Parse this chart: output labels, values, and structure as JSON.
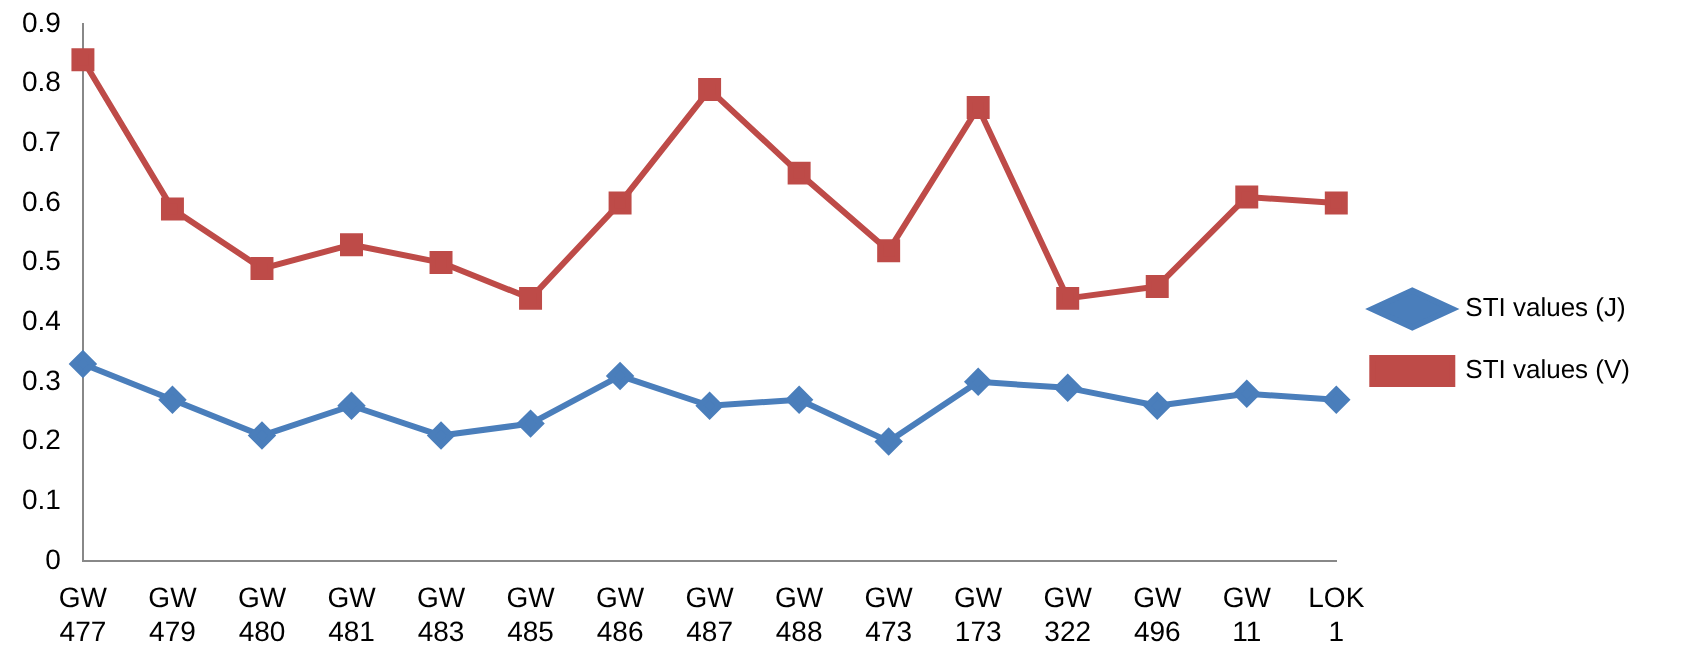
{
  "chart_data": {
    "type": "line",
    "categories": [
      "GW 477",
      "GW 479",
      "GW 480",
      "GW 481",
      "GW 483",
      "GW 485",
      "GW 486",
      "GW 487",
      "GW 488",
      "GW 473",
      "GW 173",
      "GW 322",
      "GW 496",
      "GW 11",
      "LOK 1"
    ],
    "series": [
      {
        "name": "STI values (J)",
        "color": "#4a7ebb",
        "marker": "diamond",
        "values": [
          0.33,
          0.27,
          0.21,
          0.26,
          0.21,
          0.23,
          0.31,
          0.26,
          0.27,
          0.2,
          0.3,
          0.29,
          0.26,
          0.28,
          0.27
        ]
      },
      {
        "name": "STI values (V)",
        "color": "#be4b48",
        "marker": "square",
        "values": [
          0.84,
          0.59,
          0.49,
          0.53,
          0.5,
          0.44,
          0.6,
          0.79,
          0.65,
          0.52,
          0.76,
          0.44,
          0.46,
          0.61,
          0.6
        ]
      }
    ],
    "ylim": [
      0,
      0.9
    ],
    "yticks": [
      0,
      0.1,
      0.2,
      0.3,
      0.4,
      0.5,
      0.6,
      0.7,
      0.8,
      0.9
    ],
    "legend": "right"
  }
}
